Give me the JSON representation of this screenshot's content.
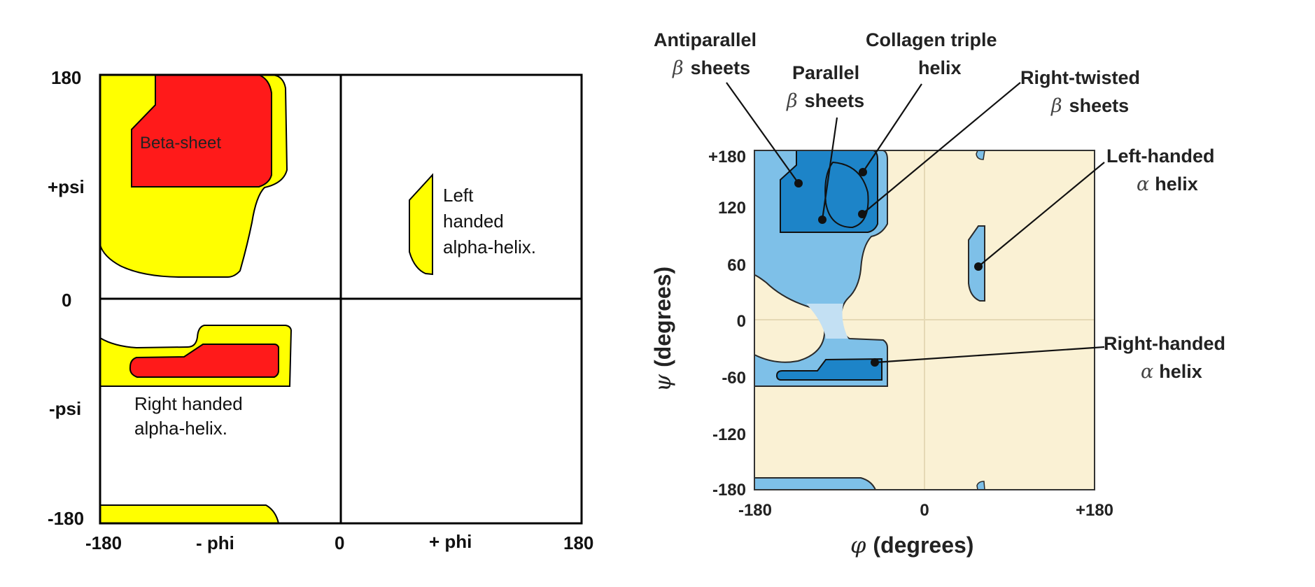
{
  "left_plot": {
    "tick_labels": {
      "y_top": "180",
      "y_mid": "0",
      "y_bottom": "-180",
      "x_left": "-180",
      "x_mid": "0",
      "x_right": "180"
    },
    "axis_labels": {
      "pos_psi": "+psi",
      "neg_psi": "-psi",
      "neg_phi": "- phi",
      "pos_phi": "+ phi"
    },
    "region_labels": {
      "beta_sheet": "Beta-sheet",
      "left_helix_line1": "Left",
      "left_helix_line2": "handed",
      "left_helix_line3": "alpha-helix.",
      "right_helix_line1": "Right handed",
      "right_helix_line2": "alpha-helix."
    },
    "colors": {
      "core": "#ff1a1a",
      "allowed": "#ffff00",
      "frame": "#000000"
    }
  },
  "right_plot": {
    "x_ticks": [
      "-180",
      "0",
      "+180"
    ],
    "y_ticks": [
      "+180",
      "120",
      "60",
      "0",
      "-60",
      "-120",
      "-180"
    ],
    "x_axis_label": "(degrees)",
    "x_axis_symbol": "φ",
    "y_axis_label": "(degrees)",
    "y_axis_symbol": "ψ",
    "annotations": {
      "antiparallel_line1": "Antiparallel",
      "antiparallel_line2": "sheets",
      "parallel_line1": "Parallel",
      "parallel_line2": "sheets",
      "collagen_line1": "Collagen triple",
      "collagen_line2": "helix",
      "right_twisted_line1": "Right-twisted",
      "right_twisted_line2": "sheets",
      "left_handed_line1": "Left-handed",
      "left_handed_line2": "helix",
      "right_handed_line1": "Right-handed",
      "right_handed_line2": "helix",
      "beta_symbol": "β",
      "alpha_symbol": "α"
    },
    "colors": {
      "background": "#faf1d4",
      "allowed": "#7ec0e8",
      "core": "#1d84c8",
      "light": "#c3e0f3"
    }
  }
}
